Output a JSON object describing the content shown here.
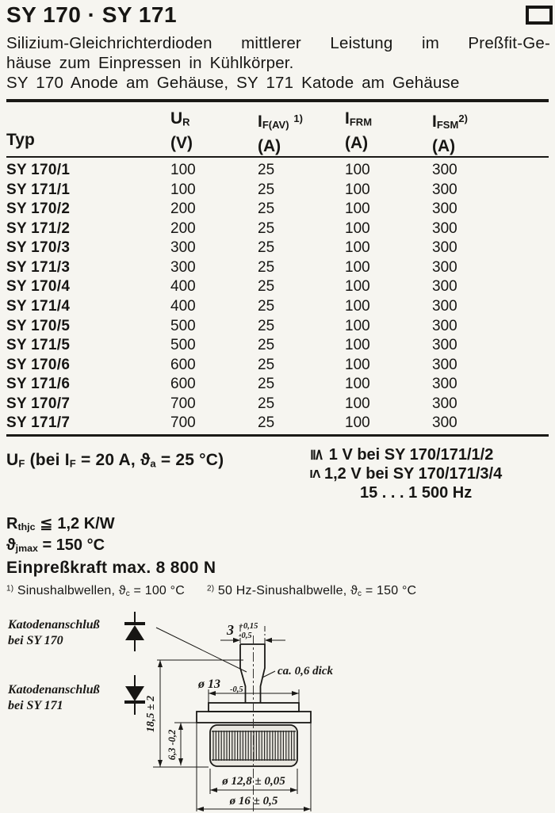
{
  "header": {
    "title": "SY 170 · SY 171",
    "corner_icon": "rectangle-outline-icon"
  },
  "description": {
    "line1": "Silizium-Gleichrichterdioden mittlerer Leistung im Preßfit-Ge-",
    "line2": "häuse zum Einpressen in Kühlkörper.",
    "line3": "SY 170 Anode am Gehäuse, SY 171 Katode am Gehäuse"
  },
  "table": {
    "headers": {
      "typ": "Typ",
      "ur": {
        "sym": "U",
        "sub": "R",
        "unit": "(V)"
      },
      "ifav": {
        "sym": "I",
        "sub": "F(AV)",
        "sup": "1)",
        "unit": "(A)"
      },
      "ifrm": {
        "sym": "I",
        "sub": "FRM",
        "unit": "(A)"
      },
      "ifsm": {
        "sym": "I",
        "sub": "FSM",
        "sup": "2)",
        "unit": "(A)"
      }
    },
    "rows": [
      {
        "typ": "SY 170/1",
        "ur": "100",
        "ifav": "25",
        "ifrm": "100",
        "ifsm": "300"
      },
      {
        "typ": "SY 171/1",
        "ur": "100",
        "ifav": "25",
        "ifrm": "100",
        "ifsm": "300"
      },
      {
        "typ": "SY 170/2",
        "ur": "200",
        "ifav": "25",
        "ifrm": "100",
        "ifsm": "300"
      },
      {
        "typ": "SY 171/2",
        "ur": "200",
        "ifav": "25",
        "ifrm": "100",
        "ifsm": "300"
      },
      {
        "typ": "SY 170/3",
        "ur": "300",
        "ifav": "25",
        "ifrm": "100",
        "ifsm": "300"
      },
      {
        "typ": "SY 171/3",
        "ur": "300",
        "ifav": "25",
        "ifrm": "100",
        "ifsm": "300"
      },
      {
        "typ": "SY 170/4",
        "ur": "400",
        "ifav": "25",
        "ifrm": "100",
        "ifsm": "300"
      },
      {
        "typ": "SY 171/4",
        "ur": "400",
        "ifav": "25",
        "ifrm": "100",
        "ifsm": "300"
      },
      {
        "typ": "SY 170/5",
        "ur": "500",
        "ifav": "25",
        "ifrm": "100",
        "ifsm": "300"
      },
      {
        "typ": "SY 171/5",
        "ur": "500",
        "ifav": "25",
        "ifrm": "100",
        "ifsm": "300"
      },
      {
        "typ": "SY 170/6",
        "ur": "600",
        "ifav": "25",
        "ifrm": "100",
        "ifsm": "300"
      },
      {
        "typ": "SY 171/6",
        "ur": "600",
        "ifav": "25",
        "ifrm": "100",
        "ifsm": "300"
      },
      {
        "typ": "SY 170/7",
        "ur": "700",
        "ifav": "25",
        "ifrm": "100",
        "ifsm": "300"
      },
      {
        "typ": "SY 171/7",
        "ur": "700",
        "ifav": "25",
        "ifrm": "100",
        "ifsm": "300"
      }
    ]
  },
  "uf": {
    "u_sym": "U",
    "u_sub": "F",
    "cond_pre": " (bei ",
    "if_sym": "I",
    "if_sub": "F",
    "cond_mid": " = 20 A, ",
    "theta_sym": "ϑ",
    "theta_sub": "a",
    "cond_post": " = 25 °C)",
    "limit1_op": "≦",
    "limit1": "1 V bei SY 170/171/1/2",
    "limit2_op": "≤",
    "limit2": "1,2 V bei SY 170/171/3/4",
    "freq_range": "15 . . . 1 500 Hz"
  },
  "ratings": {
    "rthjc": {
      "sym": "R",
      "sub": "thjc",
      "op": " ≦ ",
      "value": "1,2 K/W"
    },
    "tjmax": {
      "sym": "ϑ",
      "sub": "jmax",
      "op": " = ",
      "value": "150 °C"
    },
    "press_force": "Einpreßkraft max. 8 800 N"
  },
  "footnotes": {
    "fn1_marker": "1)",
    "fn1_text": " Sinushalbwellen, ",
    "fn1_sym": "ϑ",
    "fn1_sub": "c",
    "fn1_val": " = 100 °C",
    "fn2_marker": "2)",
    "fn2_text": " 50 Hz-Sinushalbwelle, ",
    "fn2_sym": "ϑ",
    "fn2_sub": "c",
    "fn2_val": " = 150 °C"
  },
  "diagram": {
    "labels": {
      "cathode_sy170_line1": "Katodenanschluß",
      "cathode_sy170_line2": "bei SY 170",
      "cathode_sy171_line1": "Katodenanschluß",
      "cathode_sy171_line2": "bei SY 171"
    },
    "dims": {
      "tab_width": "3",
      "tab_tol_plus": "+0,15",
      "tab_tol_minus": "-0,5",
      "tab_thickness": "ca. 0,6 dick",
      "d13": "ø 13",
      "d13_tol": "-0,5",
      "height_total": "18,5 ± 2",
      "height_knurl": "6,3 -0,2",
      "d128": "ø 12,8 ± 0,05",
      "d16": "ø 16 ± 0,5"
    }
  }
}
